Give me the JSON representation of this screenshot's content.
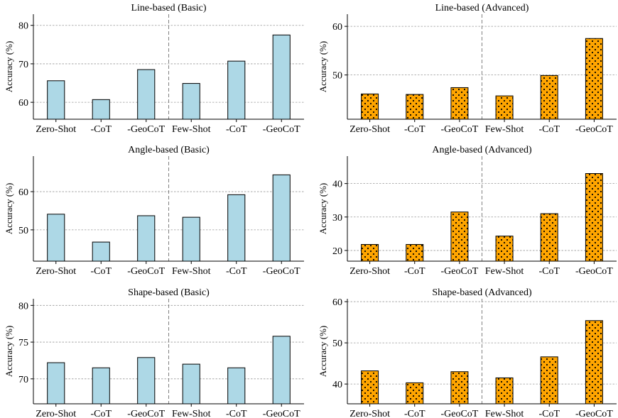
{
  "chart_data": [
    {
      "type": "bar",
      "title": "Line-based (Basic)",
      "ylabel": "Accuracy (%)",
      "categories": [
        "Zero-Shot",
        "-CoT",
        "-GeoCoT",
        "Few-Shot",
        "-CoT",
        "-GeoCoT"
      ],
      "values": [
        65.6,
        60.7,
        68.5,
        64.9,
        70.7,
        77.5
      ],
      "ylim": [
        55.6,
        82.9
      ],
      "yticks": [
        60,
        70,
        80
      ],
      "style": "basic",
      "grid": "y-dashed",
      "divider_after_index": 2
    },
    {
      "type": "bar",
      "title": "Line-based (Advanced)",
      "ylabel": "Accuracy (%)",
      "categories": [
        "Zero-Shot",
        "-CoT",
        "-GeoCoT",
        "Few-Shot",
        "-CoT",
        "-GeoCoT"
      ],
      "values": [
        46.1,
        46.0,
        47.4,
        45.7,
        49.9,
        57.5
      ],
      "ylim": [
        40.9,
        62.5
      ],
      "yticks": [
        50,
        60
      ],
      "style": "advanced",
      "grid": "y-dashed",
      "divider_after_index": 2
    },
    {
      "type": "bar",
      "title": "Angle-based (Basic)",
      "ylabel": "Accuracy (%)",
      "categories": [
        "Zero-Shot",
        "-CoT",
        "-GeoCoT",
        "Few-Shot",
        "-CoT",
        "-GeoCoT"
      ],
      "values": [
        54.1,
        46.8,
        53.7,
        53.3,
        59.2,
        64.4
      ],
      "ylim": [
        41.8,
        69.3
      ],
      "yticks": [
        50,
        60
      ],
      "style": "basic",
      "grid": "y-dashed",
      "divider_after_index": 2
    },
    {
      "type": "bar",
      "title": "Angle-based (Advanced)",
      "ylabel": "Accuracy (%)",
      "categories": [
        "Zero-Shot",
        "-CoT",
        "-GeoCoT",
        "Few-Shot",
        "-CoT",
        "-GeoCoT"
      ],
      "values": [
        21.8,
        21.8,
        31.5,
        24.3,
        31.0,
        43.0
      ],
      "ylim": [
        16.8,
        48.2
      ],
      "yticks": [
        20,
        30,
        40
      ],
      "style": "advanced",
      "grid": "y-dashed",
      "divider_after_index": 2
    },
    {
      "type": "bar",
      "title": "Shape-based (Basic)",
      "ylabel": "Accuracy (%)",
      "categories": [
        "Zero-Shot",
        "-CoT",
        "-GeoCoT",
        "Few-Shot",
        "-CoT",
        "-GeoCoT"
      ],
      "values": [
        72.2,
        71.5,
        72.9,
        72.0,
        71.5,
        75.8
      ],
      "ylim": [
        66.6,
        80.9
      ],
      "yticks": [
        70,
        75,
        80
      ],
      "style": "basic",
      "grid": "y-dashed",
      "divider_after_index": 2
    },
    {
      "type": "bar",
      "title": "Shape-based (Advanced)",
      "ylabel": "Accuracy (%)",
      "categories": [
        "Zero-Shot",
        "-CoT",
        "-GeoCoT",
        "Few-Shot",
        "-CoT",
        "-GeoCoT"
      ],
      "values": [
        43.2,
        40.3,
        43.0,
        41.5,
        46.6,
        55.4
      ],
      "ylim": [
        35.2,
        60.7
      ],
      "yticks": [
        40,
        50,
        60
      ],
      "style": "advanced",
      "grid": "y-dashed",
      "divider_after_index": 2
    }
  ],
  "colors": {
    "basic_fill": "#add8e6",
    "advanced_fill": "#ffa500",
    "bar_edge": "#000000",
    "grid": "#999999",
    "divider": "#808080"
  }
}
